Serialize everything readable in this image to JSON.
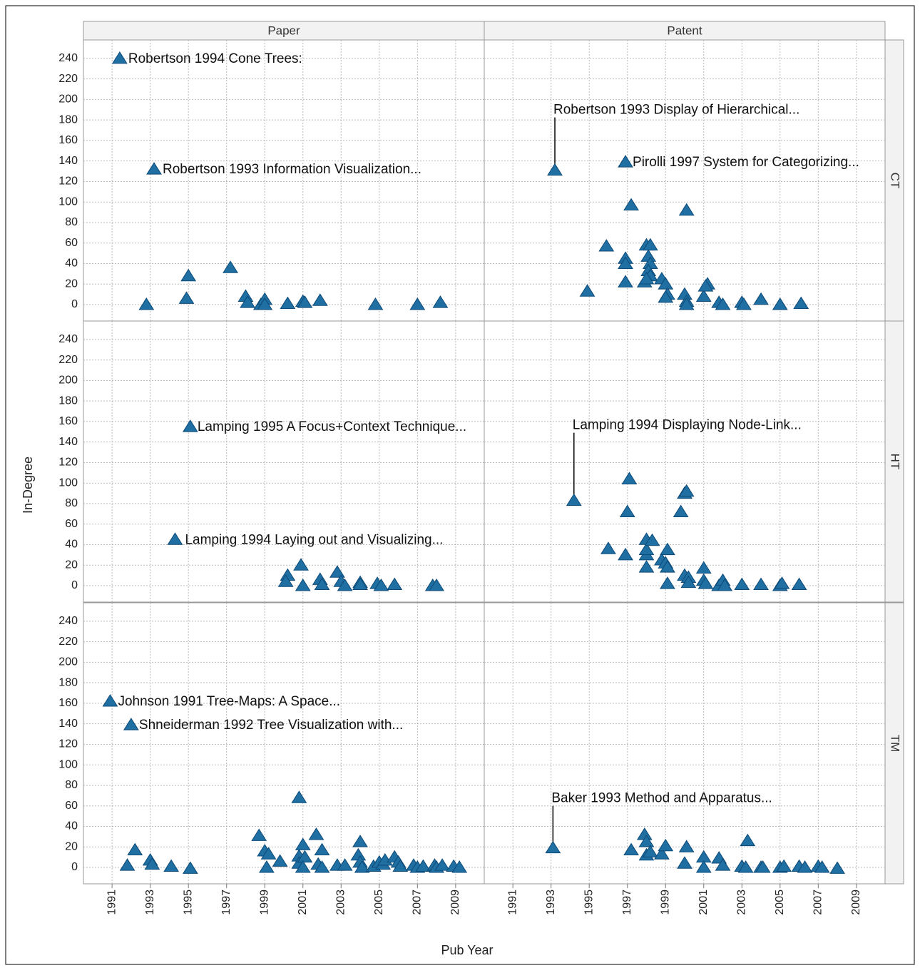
{
  "chart_data": {
    "type": "scatter",
    "x_label": "Pub Year",
    "y_label": "In-Degree",
    "column_labels": [
      "Paper",
      "Patent"
    ],
    "row_labels": [
      "CT",
      "HT",
      "TM"
    ],
    "xlim": [
      1989.5,
      2010.5
    ],
    "xticks": [
      1991,
      1993,
      1995,
      1997,
      1999,
      2001,
      2003,
      2005,
      2007,
      2009
    ],
    "ylim": [
      -16,
      258
    ],
    "yticks": [
      0,
      20,
      40,
      60,
      80,
      100,
      120,
      140,
      160,
      180,
      200,
      220,
      240
    ],
    "grid": true,
    "color": "#1f6fa3",
    "panels": [
      [
        {
          "x": [
            1992.8,
            1995,
            1994.9,
            1997.2,
            1998,
            1998.1,
            1998.8,
            1999,
            1999,
            2000.2,
            2001,
            2001.1,
            2001.9,
            2004.8,
            2007,
            2008.2
          ],
          "y": [
            0,
            28,
            6,
            36,
            8,
            2,
            0,
            5,
            0,
            1,
            3,
            2,
            4,
            0,
            0,
            2
          ],
          "annotations": [
            {
              "text": "Robertson 1994 Cone Trees:",
              "x": 1991.4,
              "y": 240
            },
            {
              "text": "Robertson 1993 Information Visualization...",
              "x": 1993.2,
              "y": 132
            }
          ]
        },
        {
          "x": [
            1994.9,
            1995.9,
            1996.9,
            1996.9,
            1996.9,
            1997.2,
            1998,
            1998.2,
            1998.1,
            1998.2,
            1998.1,
            1998.2,
            1997.9,
            1998,
            1998.8,
            1999,
            1999.1,
            1999,
            2000,
            2000.1,
            2000.1,
            2000.1,
            2001,
            2001.2,
            2001.1,
            2001.8,
            2002,
            2003,
            2003.1,
            2004,
            2005,
            2006.1
          ],
          "y": [
            13,
            57,
            45,
            40,
            22,
            97,
            58,
            58,
            47,
            40,
            33,
            28,
            22,
            25,
            25,
            20,
            10,
            7,
            10,
            3,
            0,
            92,
            8,
            20,
            18,
            2,
            0,
            2,
            0,
            5,
            0,
            1
          ],
          "annotations": [
            {
              "text": "Robertson 1993 Display of Hierarchical...",
              "x": 1993.2,
              "y": 131
            },
            {
              "text": "Pirolli 1997 System for Categorizing...",
              "x": 1996.9,
              "y": 139
            }
          ]
        }
      ],
      [
        {
          "x": [
            2000.2,
            2000.1,
            2000.9,
            2001,
            2001.9,
            2002,
            2002.8,
            2003,
            2003.2,
            2004,
            2004,
            2004.9,
            2005.1,
            2005.8,
            2007.8,
            2008
          ],
          "y": [
            10,
            4,
            20,
            0,
            6,
            1,
            13,
            4,
            0,
            3,
            1,
            2,
            0,
            1,
            0,
            0
          ],
          "annotations": [
            {
              "text": "Lamping 1995 A Focus+Context Technique...",
              "x": 1995.1,
              "y": 155
            },
            {
              "text": "Lamping 1994 Laying out and Visualizing...",
              "x": 1994.3,
              "y": 45
            }
          ]
        },
        {
          "x": [
            1996,
            1996.9,
            1997,
            1997.1,
            1998,
            1998,
            1998,
            1998,
            1998.3,
            1998.8,
            1999,
            1999.1,
            1999.1,
            1999.1,
            1999.8,
            2000,
            2000.1,
            2000,
            2000.2,
            2000.2,
            2001,
            2001,
            2001.1,
            2001.8,
            2002,
            2002.1,
            2003,
            2004,
            2005,
            2005.1,
            2006
          ],
          "y": [
            36,
            30,
            72,
            104,
            18,
            30,
            35,
            45,
            44,
            25,
            22,
            35,
            18,
            2,
            72,
            90,
            92,
            10,
            8,
            3,
            17,
            5,
            2,
            0,
            5,
            0,
            1,
            1,
            0,
            2,
            1
          ],
          "annotations": [
            {
              "text": "Lamping 1994 Displaying Node-Link...",
              "x": 1994.2,
              "y": 83
            }
          ]
        }
      ],
      [
        {
          "x": [
            1991.8,
            1992.2,
            1993,
            1993.1,
            1994.1,
            1995.1,
            1998.7,
            1999,
            1999.2,
            1999.1,
            1999.8,
            2000.8,
            2000.8,
            2000.8,
            2001,
            2001.1,
            2001,
            2001.7,
            2001.8,
            2002,
            2002,
            2002.8,
            2003.2,
            2003.9,
            2004,
            2004,
            2004.1,
            2004.7,
            2005,
            2005.2,
            2005.3,
            2005.8,
            2006,
            2006.1,
            2006.8,
            2007,
            2007.3,
            2007.9,
            2008,
            2008.3,
            2008.9,
            2009.2
          ],
          "y": [
            2,
            17,
            7,
            3,
            1,
            -1,
            31,
            16,
            13,
            0,
            6,
            68,
            11,
            4,
            22,
            10,
            0,
            32,
            3,
            17,
            0,
            2,
            2,
            12,
            25,
            5,
            0,
            1,
            5,
            3,
            7,
            10,
            5,
            1,
            2,
            0,
            1,
            2,
            0,
            2,
            1,
            0
          ],
          "annotations": [
            {
              "text": "Johnson 1991 Tree-Maps: A Space...",
              "x": 1990.9,
              "y": 162
            },
            {
              "text": "Shneiderman 1992 Tree Visualization with...",
              "x": 1992,
              "y": 139
            }
          ]
        },
        {
          "x": [
            1997.2,
            1997.9,
            1998,
            1998,
            1998.2,
            1998.8,
            1999,
            2000,
            2000.1,
            2001,
            2001,
            2001.8,
            2002,
            2003,
            2003.2,
            2003.3,
            2004,
            2004.1,
            2005,
            2005.2,
            2006,
            2006.3,
            2007,
            2007.2,
            2008
          ],
          "y": [
            17,
            32,
            25,
            12,
            15,
            13,
            21,
            4,
            20,
            10,
            0,
            9,
            2,
            1,
            0,
            26,
            0,
            0,
            0,
            1,
            1,
            0,
            1,
            0,
            -1
          ],
          "annotations": [
            {
              "text": "Baker 1993 Method and Apparatus...",
              "x": 1993.1,
              "y": 19
            }
          ]
        }
      ]
    ]
  }
}
